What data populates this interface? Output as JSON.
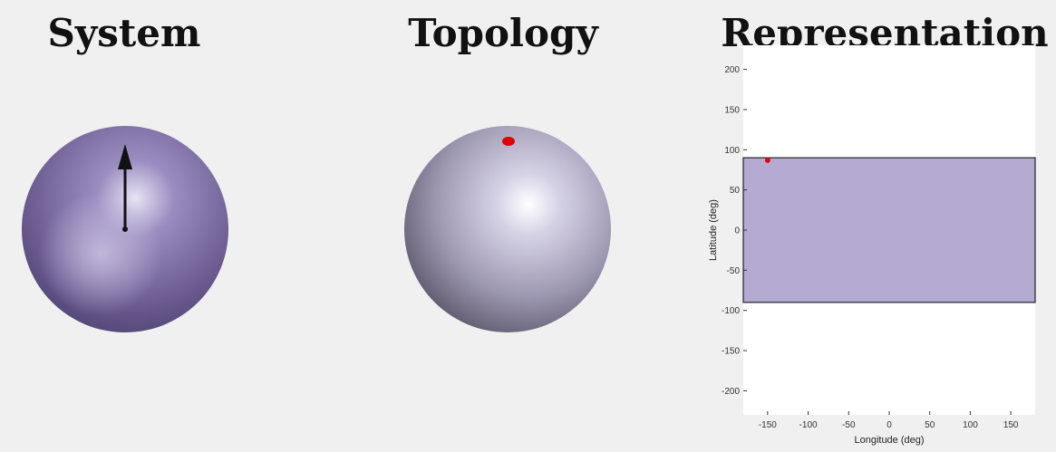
{
  "panels": {
    "system": {
      "title": "System"
    },
    "topology": {
      "title": "Topology"
    },
    "representation": {
      "title": "Representation"
    }
  },
  "colors": {
    "background": "#f0f0f0",
    "system_sphere": "#6a5a8f",
    "topology_sphere": "#c5c1d6",
    "arrow": "#111111",
    "marker": "#e00000",
    "region_fill": "#b4aad2",
    "region_stroke": "#222222"
  },
  "system_view": {
    "arrow": "pointing-up-arrow"
  },
  "topology_view": {
    "marker": "north-pole-point"
  },
  "chart_data": {
    "type": "scatter",
    "xlabel": "Longitude (deg)",
    "ylabel": "Latitude (deg)",
    "xlim": [
      -180,
      180
    ],
    "ylim": [
      -230,
      230
    ],
    "xticks": [
      -150,
      -100,
      -50,
      0,
      50,
      100,
      150
    ],
    "yticks": [
      -200,
      -150,
      -100,
      -50,
      0,
      50,
      100,
      150,
      200
    ],
    "grid": false,
    "region": {
      "x": [
        -180,
        180
      ],
      "y": [
        -90,
        90
      ]
    },
    "points": [
      {
        "x": -150,
        "y": 87
      }
    ]
  }
}
